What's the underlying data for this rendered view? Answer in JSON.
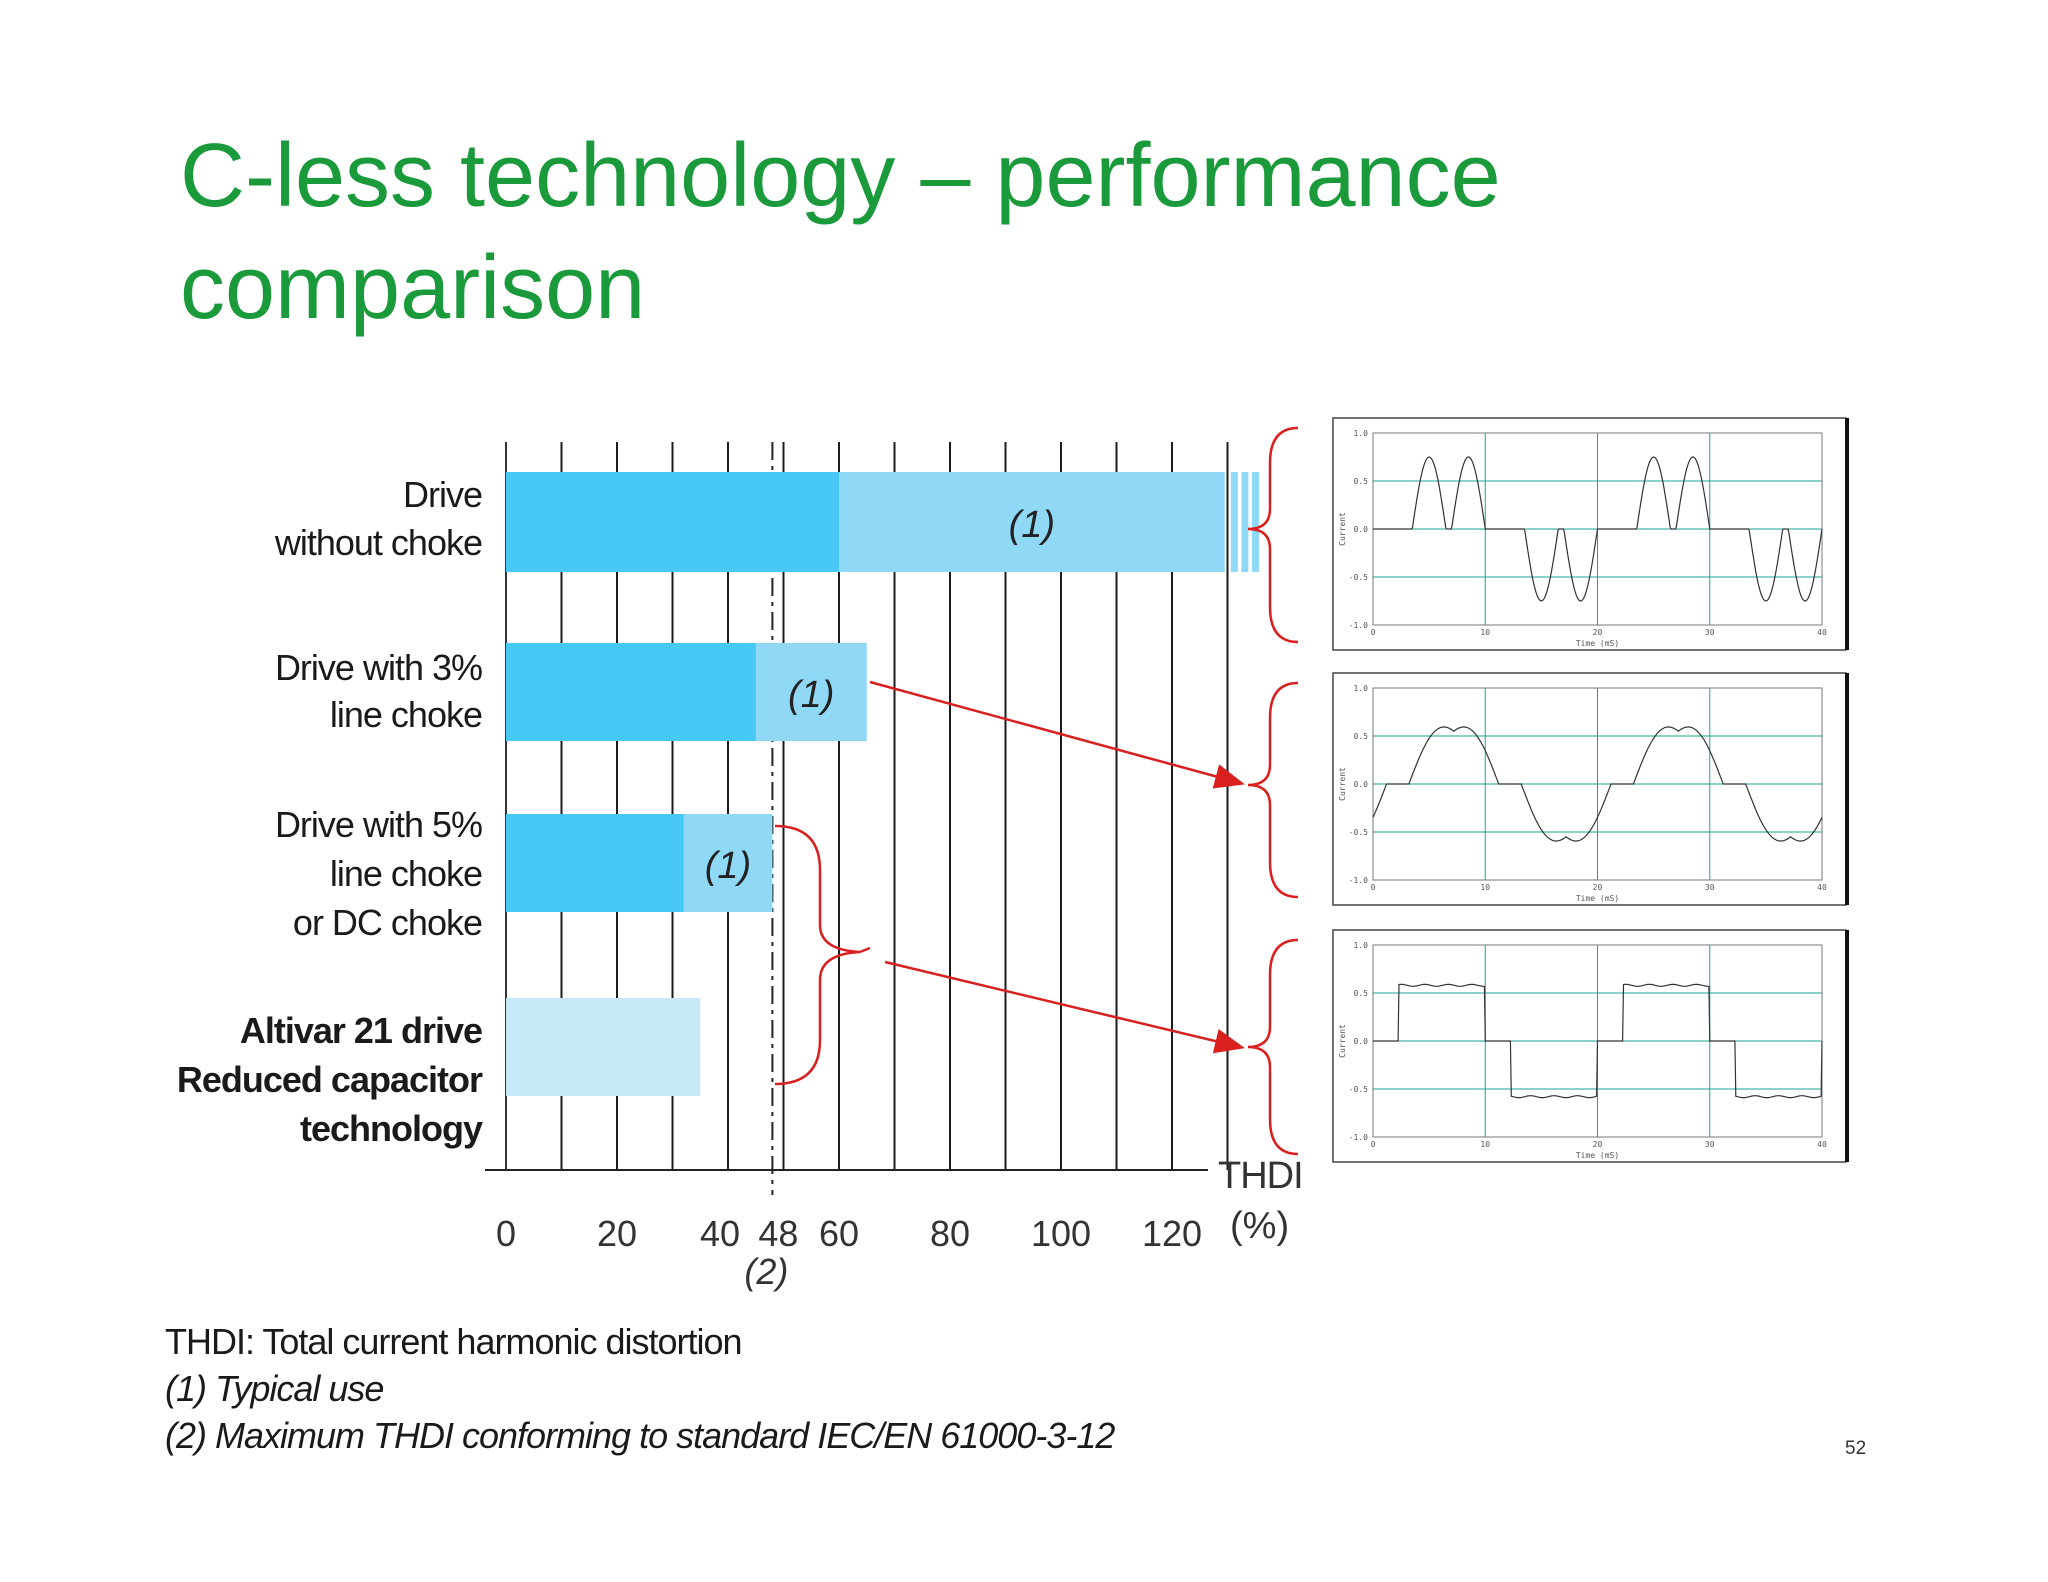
{
  "slide": {
    "title_line1": "C-less technology – performance",
    "title_line2": "comparison",
    "page_number": "52"
  },
  "footnotes": {
    "thdi": "THDI: Total current harmonic distortion",
    "note1": "(1) Typical use",
    "note2": "(2) Maximum THDI conforming to standard IEC/EN 61000-3-12"
  },
  "colors": {
    "title_green": "#1a9a3a",
    "bar_dark": "#47c8f5",
    "bar_light": "#8fd9f7",
    "bar_altivar": "#c6e9f7",
    "arrow_red": "#d9201f",
    "grid_green": "#1aa596"
  },
  "chart_data": {
    "type": "bar",
    "orientation": "horizontal",
    "xlabel": "THDI",
    "xunit": "(%)",
    "xticks": [
      "0",
      "20",
      "40",
      "48",
      "60",
      "80",
      "100",
      "120"
    ],
    "limit_value": 48,
    "limit_label": "(2)",
    "typical_label": "(1)",
    "categories": [
      "Drive without choke",
      "Drive with 3% line choke",
      "Drive with 5% line choke or DC choke",
      "Altivar 21 drive Reduced capacitor technology"
    ],
    "category_lines": [
      [
        "Drive",
        "without choke"
      ],
      [
        "Drive with 3%",
        "line choke"
      ],
      [
        "Drive with 5%",
        "line choke",
        "or DC choke"
      ],
      [
        "Altivar 21 drive",
        "Reduced capacitor",
        "technology"
      ]
    ],
    "series": [
      {
        "values": [
          60,
          45,
          32,
          35
        ]
      },
      {
        "name": "(1)",
        "values": [
          138,
          65,
          48,
          null
        ]
      }
    ],
    "waveform_panels": [
      {
        "ylabel": "Current",
        "xlabel": "Time (mS)",
        "yticks": [
          "1.0",
          "0.5",
          "0.0",
          "-0.5",
          "-1.0"
        ],
        "xticks": [
          "0",
          "10",
          "20",
          "30",
          "40"
        ],
        "shape": "double-pulse"
      },
      {
        "ylabel": "Current",
        "xlabel": "Time (mS)",
        "yticks": [
          "1.0",
          "0.5",
          "0.0",
          "-0.5",
          "-1.0"
        ],
        "xticks": [
          "0",
          "10",
          "20",
          "30",
          "40"
        ],
        "shape": "rounded-double-pulse"
      },
      {
        "ylabel": "Current",
        "xlabel": "Time (mS)",
        "yticks": [
          "1.0",
          "0.5",
          "0.0",
          "-0.5",
          "-1.0"
        ],
        "xticks": [
          "0",
          "10",
          "20",
          "30",
          "40"
        ],
        "shape": "square-wave"
      }
    ]
  }
}
